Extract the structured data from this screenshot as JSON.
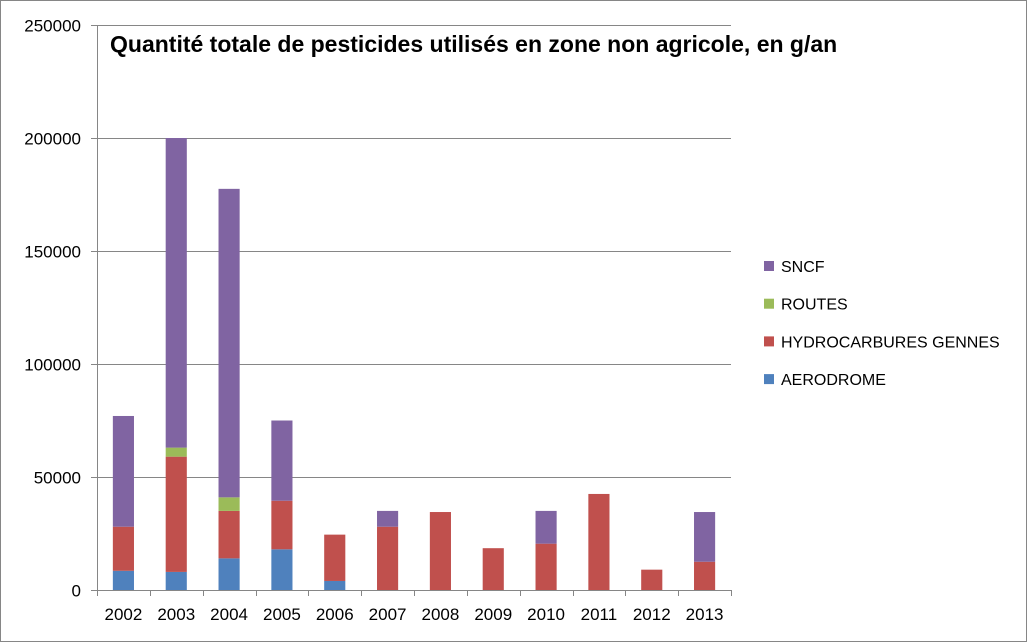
{
  "chart_data": {
    "type": "bar",
    "stacked": true,
    "title": "Quantité totale de pesticides utilisés en zone non agricole, en g/an",
    "xlabel": "",
    "ylabel": "",
    "ylim": [
      0,
      250000
    ],
    "yticks": [
      0,
      50000,
      100000,
      150000,
      200000,
      250000
    ],
    "ytick_labels": [
      "0",
      "50000",
      "100000",
      "150000",
      "200000",
      "250000"
    ],
    "grid": true,
    "legend_position": "right",
    "categories": [
      "2002",
      "2003",
      "2004",
      "2005",
      "2006",
      "2007",
      "2008",
      "2009",
      "2010",
      "2011",
      "2012",
      "2013"
    ],
    "series": [
      {
        "name": "AERODROME",
        "color": "#4F81BD",
        "values": [
          8500,
          8000,
          14000,
          18000,
          4000,
          0,
          0,
          0,
          0,
          0,
          0,
          0
        ]
      },
      {
        "name": "HYDROCARBURES GENNES",
        "color": "#C0504D",
        "values": [
          19500,
          51000,
          21000,
          21500,
          20500,
          28000,
          34500,
          18500,
          20500,
          42500,
          9000,
          12500
        ]
      },
      {
        "name": "ROUTES",
        "color": "#9BBB59",
        "values": [
          0,
          4000,
          6000,
          0,
          0,
          0,
          0,
          0,
          0,
          0,
          0,
          0
        ]
      },
      {
        "name": "SNCF",
        "color": "#8064A2",
        "values": [
          49000,
          137000,
          136500,
          35500,
          0,
          7000,
          0,
          0,
          14500,
          0,
          0,
          22000
        ]
      }
    ]
  }
}
